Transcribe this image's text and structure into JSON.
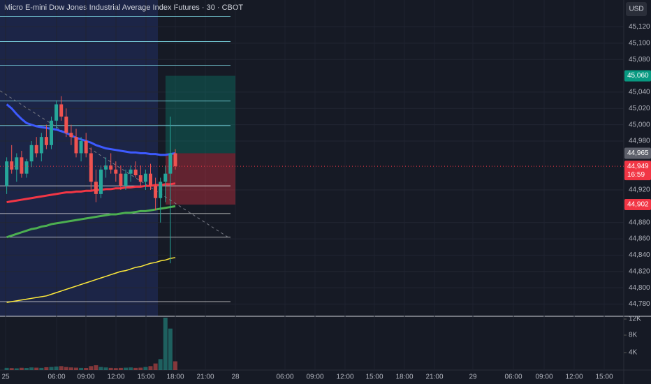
{
  "chart_data": {
    "type": "candlestick",
    "title": "Micro E-mini Dow Jones Industrial Average Index Futures · 30 · CBOT",
    "currency": "USD",
    "ylim": [
      44765,
      45153
    ],
    "yticks": [
      {
        "value": 45120,
        "label": "45,120"
      },
      {
        "value": 45100,
        "label": "45,100"
      },
      {
        "value": 45080,
        "label": "45,080"
      },
      {
        "value": 45040,
        "label": "45,040"
      },
      {
        "value": 45020,
        "label": "45,020"
      },
      {
        "value": 45000,
        "label": "45,000"
      },
      {
        "value": 44980,
        "label": "44,980"
      },
      {
        "value": 44920,
        "label": "44,920"
      },
      {
        "value": 44880,
        "label": "44,880"
      },
      {
        "value": 44860,
        "label": "44,860"
      },
      {
        "value": 44840,
        "label": "44,840"
      },
      {
        "value": 44820,
        "label": "44,820"
      },
      {
        "value": 44800,
        "label": "44,800"
      },
      {
        "value": 44780,
        "label": "44,780"
      }
    ],
    "xticks": [
      "25",
      "06:00",
      "09:00",
      "12:00",
      "15:00",
      "18:00",
      "21:00",
      "28",
      "06:00",
      "09:00",
      "12:00",
      "15:00",
      "18:00",
      "21:00",
      "29",
      "06:00",
      "09:00",
      "12:00",
      "15:00"
    ],
    "open": [
      44925,
      44955,
      44945,
      44960,
      44940,
      44955,
      44975,
      44965,
      44985,
      44975,
      45005,
      45025,
      45010,
      44990,
      44985,
      44965,
      44980,
      44965,
      44930,
      44915,
      44945,
      44950,
      44945,
      44940,
      44925,
      44940,
      44945,
      44938,
      44930,
      44940,
      44925,
      44910,
      44930,
      44940,
      44965
    ],
    "high": [
      44960,
      44975,
      44965,
      44968,
      44958,
      44980,
      44985,
      44990,
      45000,
      45010,
      45030,
      45035,
      45020,
      45000,
      44995,
      44985,
      44990,
      44972,
      44945,
      44950,
      44960,
      44965,
      44955,
      44950,
      44945,
      44950,
      44955,
      44950,
      44945,
      44952,
      44935,
      44935,
      44950,
      45010,
      44970
    ],
    "low": [
      44915,
      44940,
      44930,
      44935,
      44935,
      44948,
      44960,
      44955,
      44970,
      44970,
      44995,
      45005,
      44985,
      44975,
      44960,
      44955,
      44960,
      44920,
      44905,
      44910,
      44935,
      44940,
      44930,
      44920,
      44920,
      44930,
      44935,
      44925,
      44920,
      44920,
      44895,
      44880,
      44905,
      44830,
      44945
    ],
    "close": [
      44955,
      44945,
      44960,
      44940,
      44955,
      44975,
      44965,
      44985,
      44975,
      45005,
      45025,
      45010,
      44990,
      44985,
      44965,
      44980,
      44965,
      44930,
      44915,
      44945,
      44950,
      44945,
      44940,
      44925,
      44940,
      44945,
      44938,
      44930,
      44940,
      44925,
      44910,
      44930,
      44940,
      44965,
      44949
    ],
    "volume": [
      500,
      450,
      400,
      520,
      480,
      600,
      550,
      500,
      650,
      700,
      800,
      900,
      700,
      600,
      550,
      500,
      480,
      900,
      1100,
      700,
      600,
      500,
      450,
      500,
      550,
      600,
      500,
      550,
      700,
      900,
      1500,
      2500,
      12000,
      9500,
      2000
    ],
    "vticks": [
      {
        "value": 12000,
        "label": "12K"
      },
      {
        "value": 8000,
        "label": "8K"
      },
      {
        "value": 4000,
        "label": "4K"
      }
    ],
    "indicators": [
      {
        "color": "#3d5afe",
        "values": [
          45025,
          45020,
          45013,
          45007,
          45002,
          45000,
          44998,
          44997,
          44996,
          44995,
          44994,
          44992,
          44990,
          44987,
          44984,
          44982,
          44980,
          44978,
          44975,
          44973,
          44971,
          44970,
          44969,
          44968,
          44967,
          44966,
          44966,
          44965,
          44965,
          44964,
          44964,
          44963,
          44963,
          44964,
          44965
        ]
      },
      {
        "color": "#f23645",
        "values": [
          44905,
          44906,
          44907,
          44908,
          44909,
          44910,
          44911,
          44912,
          44913,
          44914,
          44915,
          44916,
          44917,
          44917,
          44918,
          44918,
          44919,
          44919,
          44920,
          44920,
          44921,
          44921,
          44922,
          44922,
          44923,
          44923,
          44924,
          44924,
          44925,
          44925,
          44926,
          44926,
          44927,
          44927,
          44928
        ]
      },
      {
        "color": "#4caf50",
        "values": [
          44862,
          44864,
          44866,
          44868,
          44870,
          44872,
          44873,
          44875,
          44876,
          44878,
          44879,
          44880,
          44881,
          44882,
          44883,
          44884,
          44885,
          44886,
          44887,
          44888,
          44889,
          44890,
          44890,
          44891,
          44892,
          44892,
          44893,
          44894,
          44894,
          44895,
          44896,
          44897,
          44898,
          44899,
          44900
        ]
      },
      {
        "color": "#ffeb3b",
        "values": [
          44782,
          44783,
          44784,
          44785,
          44786,
          44787,
          44788,
          44789,
          44790,
          44792,
          44794,
          44796,
          44798,
          44800,
          44802,
          44804,
          44806,
          44808,
          44810,
          44812,
          44814,
          44816,
          44818,
          44820,
          44821,
          44823,
          44825,
          44826,
          44828,
          44830,
          44831,
          44833,
          44834,
          44836,
          44837
        ]
      }
    ],
    "levels": [
      45133,
      45102,
      45073,
      45029,
      44999,
      44925,
      44891,
      44862,
      44783
    ],
    "position": {
      "target": 45060,
      "entry": 44965,
      "stop": 44902
    },
    "price_tags": [
      {
        "value": 45060,
        "label": "45,060",
        "color": "#089981"
      },
      {
        "value": 44965,
        "label": "44,965",
        "color": "#5d606b"
      },
      {
        "value": 44949,
        "label": "44,949",
        "color": "#f23645"
      },
      {
        "value": 44902,
        "label": "44,902",
        "color": "#f23645"
      }
    ],
    "countdown": "16:59"
  }
}
